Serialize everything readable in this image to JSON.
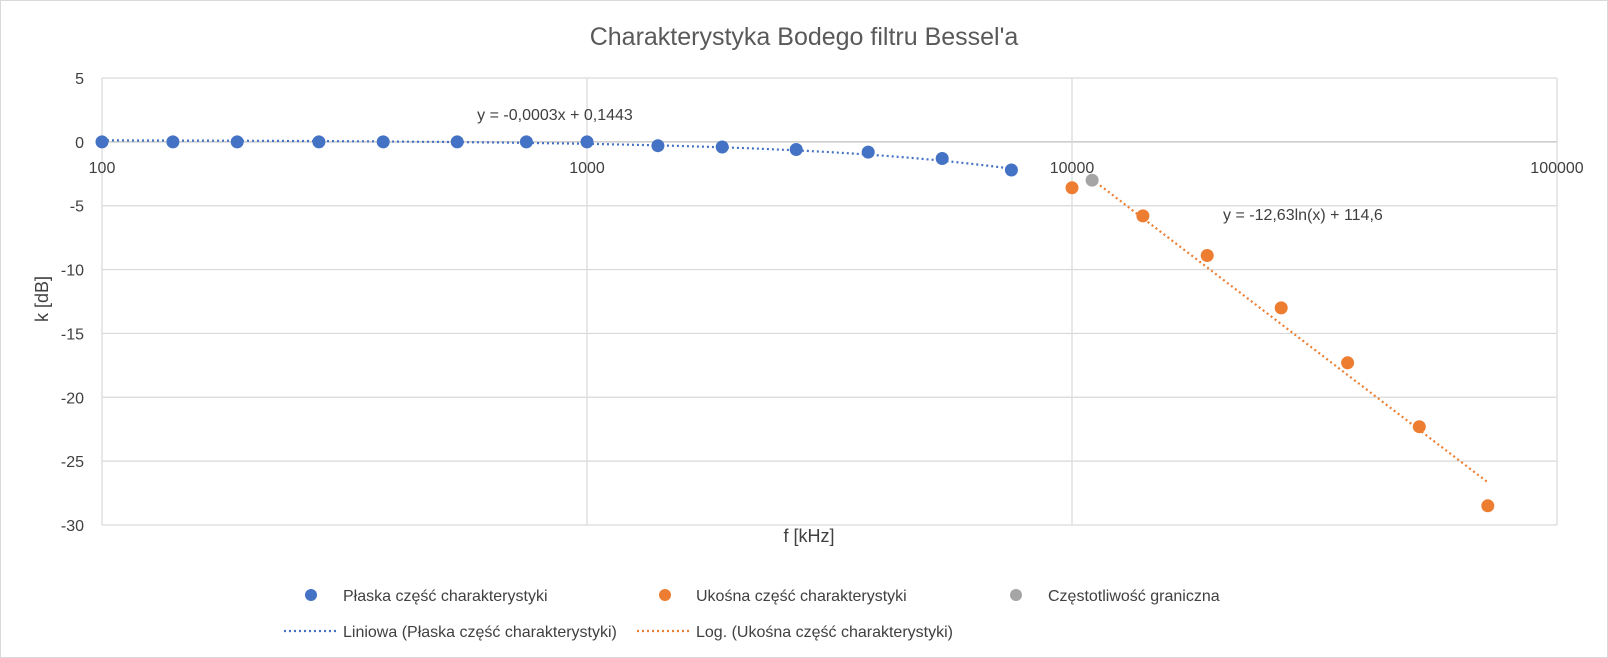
{
  "chart_data": {
    "type": "scatter",
    "title": "Charakterystyka Bodego filtru Bessel'a",
    "xlabel": "f [kHz]",
    "ylabel": "k [dB]",
    "x_scale": "log",
    "xlim": [
      100,
      100000
    ],
    "ylim": [
      -30,
      5
    ],
    "x_ticks": [
      100,
      1000,
      10000,
      100000
    ],
    "x_tick_labels": [
      "100",
      "1000",
      "10000",
      "100000"
    ],
    "y_ticks": [
      5,
      0,
      -5,
      -10,
      -15,
      -20,
      -25,
      -30
    ],
    "y_tick_labels": [
      "5",
      "0",
      "-5",
      "-10",
      "-15",
      "-20",
      "-25",
      "-30"
    ],
    "grid": true,
    "legend_position": "bottom",
    "series": [
      {
        "name": "Płaska część charakterystyki",
        "color": "#4472C4",
        "marker": "circle",
        "x": [
          100,
          140,
          190,
          280,
          380,
          540,
          750,
          1000,
          1400,
          1900,
          2700,
          3800,
          5400,
          7500
        ],
        "y": [
          0.0,
          0.0,
          0.0,
          0.0,
          0.0,
          0.0,
          0.0,
          0.0,
          -0.3,
          -0.4,
          -0.6,
          -0.8,
          -1.3,
          -2.2
        ]
      },
      {
        "name": "Ukośna część charakterystyki",
        "color": "#ED7D31",
        "marker": "circle",
        "x": [
          10000,
          14000,
          19000,
          27000,
          37000,
          52000,
          72000
        ],
        "y": [
          -3.6,
          -5.8,
          -8.9,
          -13.0,
          -17.3,
          -22.3,
          -28.5
        ]
      },
      {
        "name": "Częstotliwość graniczna",
        "color": "#A5A5A5",
        "marker": "circle",
        "x": [
          11000
        ],
        "y": [
          -3.0
        ]
      }
    ],
    "trendlines": [
      {
        "name": "Liniowa (Płaska część charakterystyki)",
        "type": "linear",
        "series": "Płaska część charakterystyki",
        "slope": -0.0003,
        "intercept": 0.1443,
        "x_range": [
          100,
          7500
        ],
        "equation": "y = -0,0003x + 0,1443",
        "color": "#4472C4"
      },
      {
        "name": "Log. (Ukośna część charakterystyki)",
        "type": "logarithmic",
        "series": "Ukośna część charakterystyki",
        "a": -12.63,
        "b": 114.6,
        "x_range": [
          11000,
          72000
        ],
        "equation": "y = -12,63ln(x) + 114,6",
        "color": "#ED7D31"
      }
    ]
  }
}
